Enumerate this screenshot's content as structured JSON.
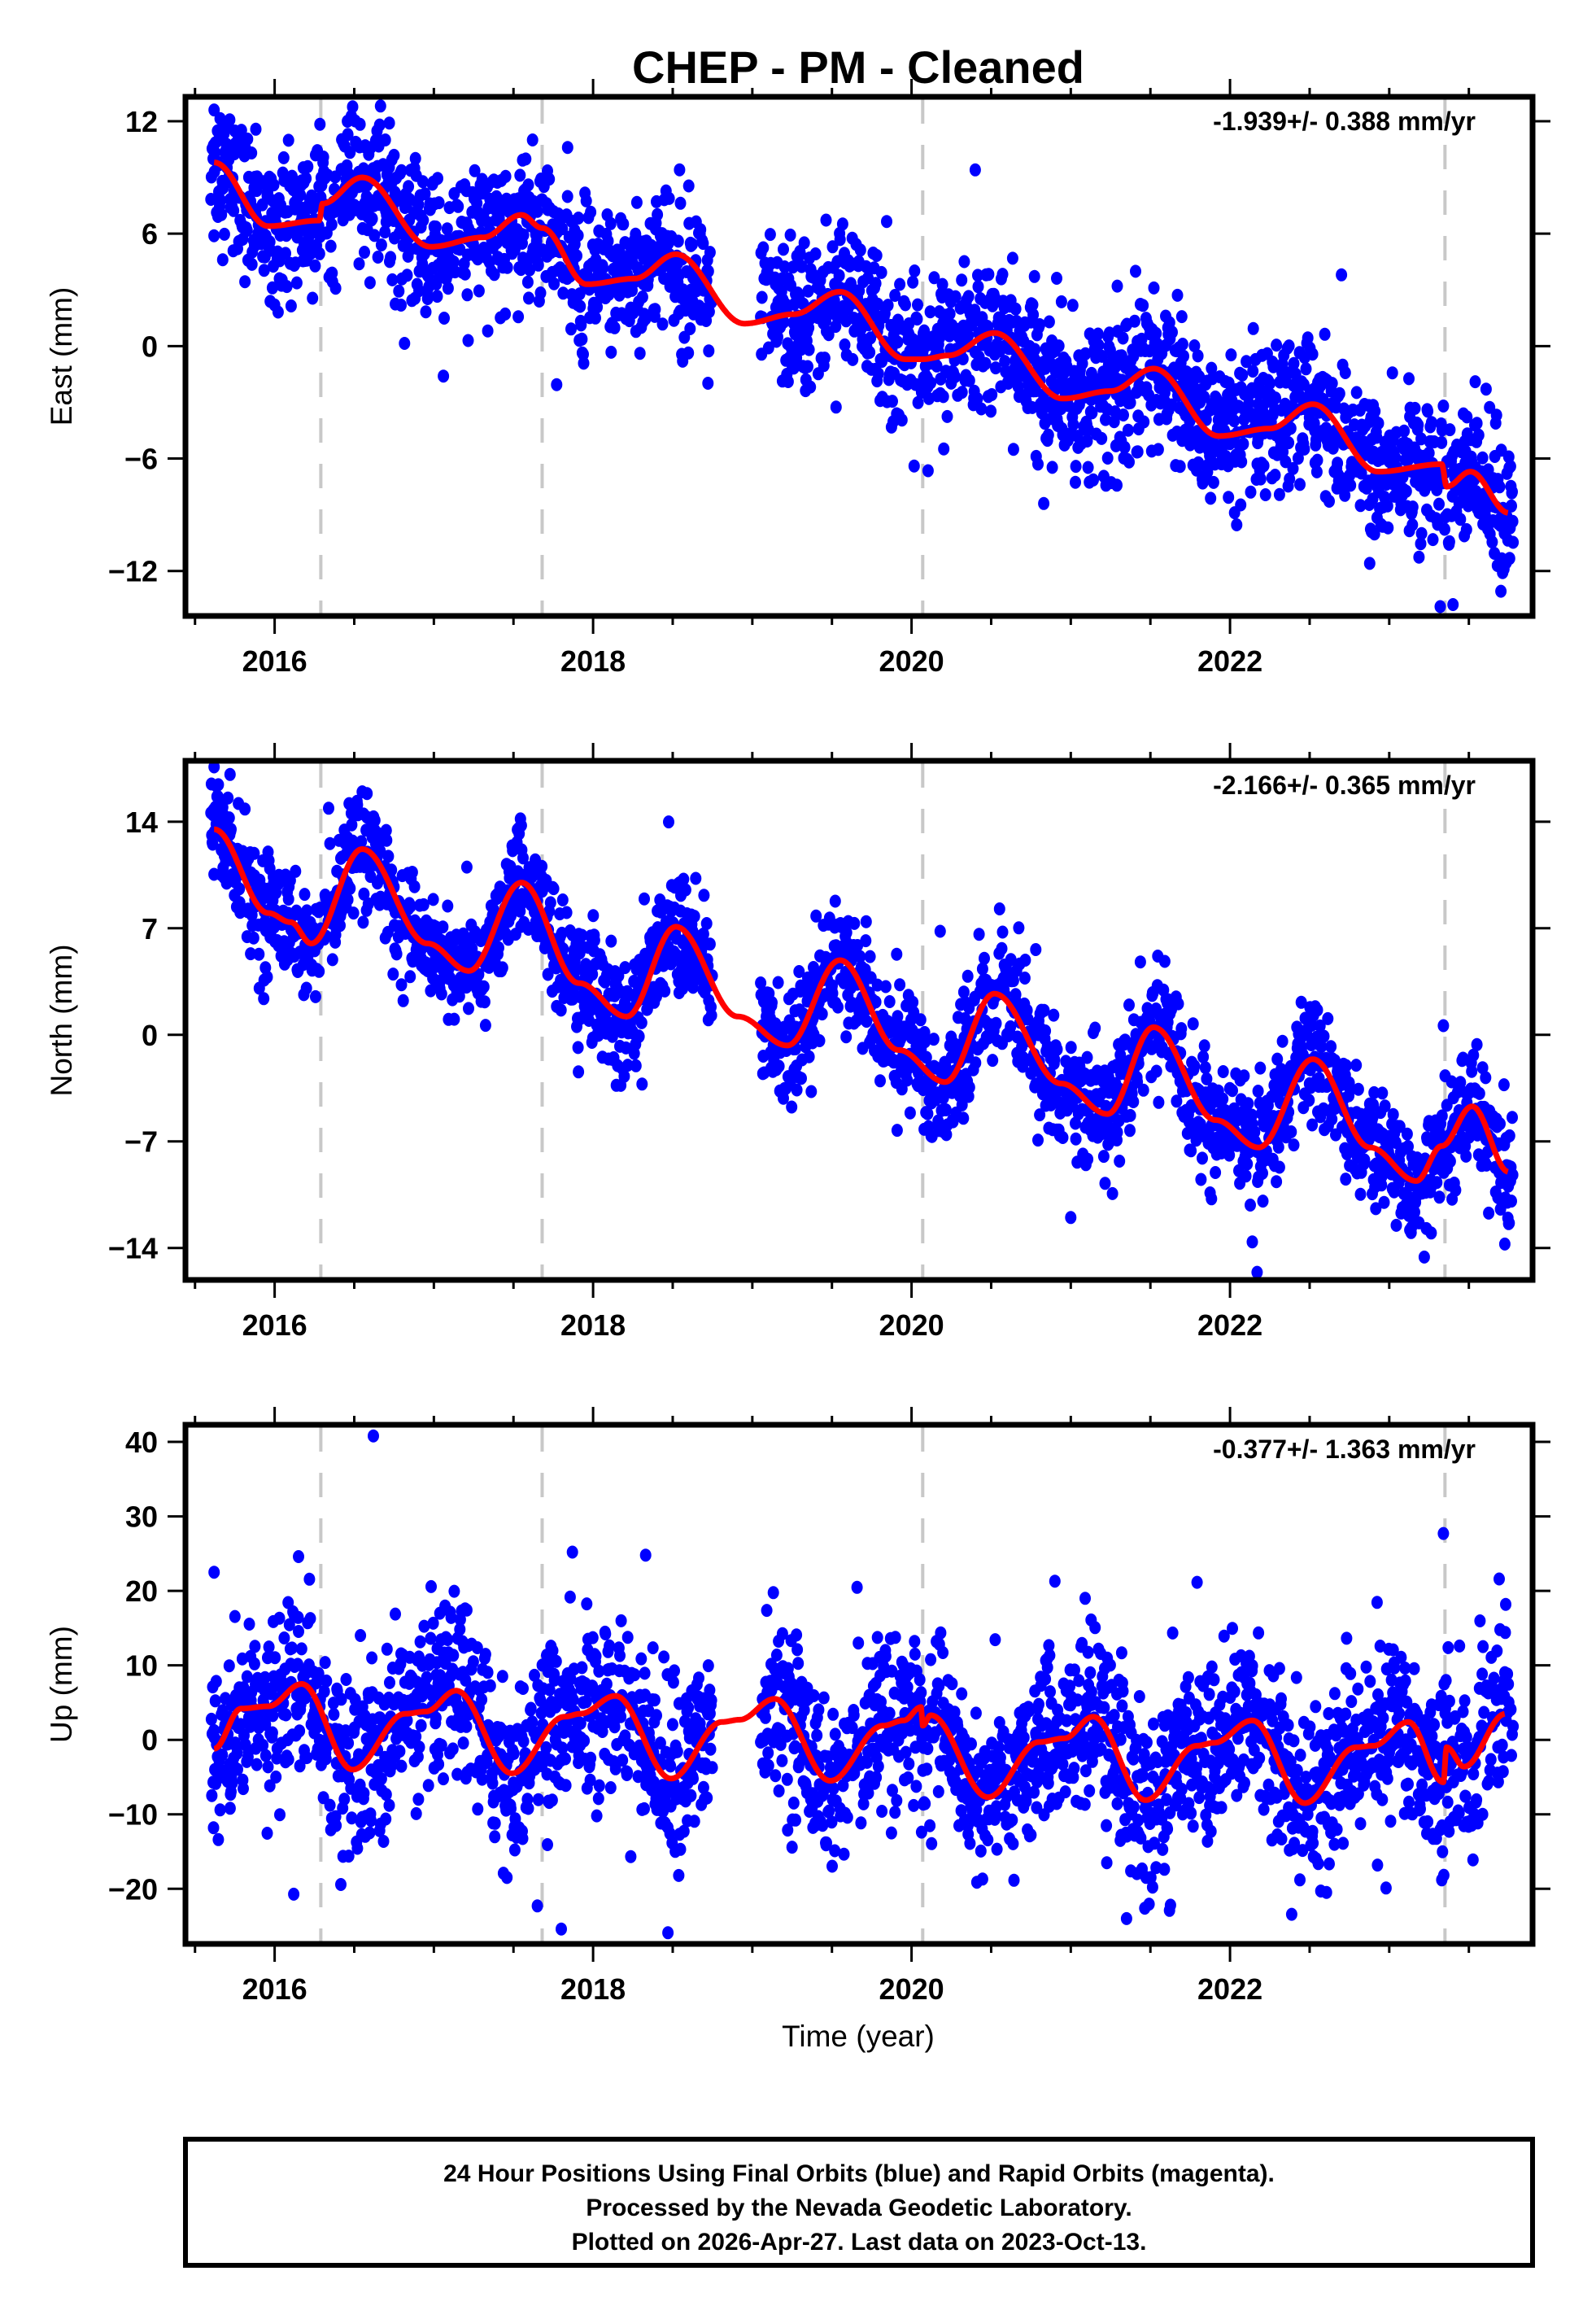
{
  "chart_data": {
    "type": "scatter",
    "title": "CHEP  - PM - Cleaned",
    "xlabel": "Time (year)",
    "xlim": [
      2015.44,
      2023.9
    ],
    "x_ticks": [
      2016,
      2018,
      2020,
      2022
    ],
    "x_tick_labels": [
      "2016",
      "2018",
      "2020",
      "2022"
    ],
    "x_minor_step": 0.5,
    "event_lines": [
      2016.29,
      2017.68,
      2020.07,
      2023.35
    ],
    "colors": {
      "points": "#0000ff",
      "model": "#ff0000",
      "event_line": "#c8c8c8",
      "frame": "#000000"
    },
    "data_span": [
      2015.6,
      2023.78
    ],
    "panels": [
      {
        "name": "east",
        "ylabel": "East (mm)",
        "ylim": [
          -14.4,
          13.3
        ],
        "y_ticks": [
          12,
          6,
          0,
          -6,
          -12
        ],
        "y_tick_labels": [
          "12",
          "6",
          "0",
          "−6",
          "−12"
        ],
        "rate_label": "-1.939+/- 0.388 mm/yr",
        "noise_sd": 1.9,
        "model": [
          [
            2015.62,
            9.8
          ],
          [
            2015.96,
            6.4
          ],
          [
            2016.28,
            6.7
          ],
          [
            2016.3,
            7.6
          ],
          [
            2016.55,
            9.0
          ],
          [
            2016.98,
            5.3
          ],
          [
            2017.31,
            5.8
          ],
          [
            2017.55,
            7.0
          ],
          [
            2017.68,
            6.3
          ],
          [
            2017.96,
            3.3
          ],
          [
            2018.26,
            3.6
          ],
          [
            2018.52,
            4.9
          ],
          [
            2018.95,
            1.2
          ],
          [
            2019.26,
            1.7
          ],
          [
            2019.55,
            2.9
          ],
          [
            2019.96,
            -0.7
          ],
          [
            2020.07,
            -0.7
          ],
          [
            2020.23,
            -0.5
          ],
          [
            2020.52,
            0.7
          ],
          [
            2020.95,
            -2.8
          ],
          [
            2021.25,
            -2.4
          ],
          [
            2021.52,
            -1.2
          ],
          [
            2021.93,
            -4.8
          ],
          [
            2022.25,
            -4.4
          ],
          [
            2022.52,
            -3.1
          ],
          [
            2022.93,
            -6.7
          ],
          [
            2023.33,
            -6.3
          ],
          [
            2023.36,
            -7.5
          ],
          [
            2023.51,
            -6.7
          ],
          [
            2023.75,
            -8.9
          ]
        ],
        "outliers": [
          [
            2015.62,
            12.6
          ],
          [
            2016.72,
            11.9
          ],
          [
            2017.62,
            11.0
          ],
          [
            2017.84,
            10.6
          ],
          [
            2020.4,
            9.4
          ],
          [
            2022.7,
            3.8
          ],
          [
            2017.06,
            -1.6
          ],
          [
            2020.83,
            -8.4
          ],
          [
            2023.32,
            -13.9
          ],
          [
            2023.72,
            -11.9
          ]
        ]
      },
      {
        "name": "north",
        "ylabel": "North (mm)",
        "ylim": [
          -16.1,
          18.0
        ],
        "y_ticks": [
          14,
          7,
          0,
          -7,
          -14
        ],
        "y_tick_labels": [
          "14",
          "7",
          "0",
          "−7",
          "−14"
        ],
        "rate_label": "-2.166+/- 0.365 mm/yr",
        "noise_sd": 1.9,
        "model": [
          [
            2015.62,
            13.5
          ],
          [
            2015.96,
            8.0
          ],
          [
            2016.1,
            7.4
          ],
          [
            2016.23,
            6.0
          ],
          [
            2016.55,
            12.2
          ],
          [
            2016.96,
            6.0
          ],
          [
            2017.22,
            4.2
          ],
          [
            2017.55,
            10.0
          ],
          [
            2017.91,
            3.4
          ],
          [
            2018.21,
            1.2
          ],
          [
            2018.52,
            7.1
          ],
          [
            2018.91,
            1.2
          ],
          [
            2019.22,
            -0.7
          ],
          [
            2019.55,
            4.9
          ],
          [
            2019.92,
            -1.0
          ],
          [
            2020.21,
            -3.1
          ],
          [
            2020.52,
            2.7
          ],
          [
            2020.94,
            -3.2
          ],
          [
            2021.23,
            -5.2
          ],
          [
            2021.52,
            0.5
          ],
          [
            2021.91,
            -5.6
          ],
          [
            2022.18,
            -7.4
          ],
          [
            2022.52,
            -1.6
          ],
          [
            2022.88,
            -7.4
          ],
          [
            2023.17,
            -9.6
          ],
          [
            2023.33,
            -7.3
          ],
          [
            2023.52,
            -4.7
          ],
          [
            2023.75,
            -9.0
          ]
        ],
        "outliers": [
          [
            2015.62,
            17.6
          ],
          [
            2015.72,
            17.1
          ],
          [
            2016.58,
            14.3
          ],
          [
            2020.18,
            6.8
          ],
          [
            2020.78,
            5.6
          ],
          [
            2021.0,
            -12.0
          ],
          [
            2022.14,
            -13.6
          ],
          [
            2022.17,
            -15.6
          ],
          [
            2023.22,
            -14.6
          ],
          [
            2023.34,
            0.6
          ],
          [
            2023.75,
            -12.4
          ]
        ]
      },
      {
        "name": "up",
        "ylabel": "Up (mm)",
        "ylim": [
          -27.4,
          42.3
        ],
        "y_ticks": [
          40,
          30,
          20,
          10,
          0,
          -10,
          -20
        ],
        "y_tick_labels": [
          "40",
          "30",
          "20",
          "10",
          "0",
          "−10",
          "−20"
        ],
        "rate_label": "-0.377+/- 1.363 mm/yr",
        "noise_sd": 5.8,
        "model": [
          [
            2015.62,
            -1.2
          ],
          [
            2015.79,
            4.2
          ],
          [
            2015.96,
            4.5
          ],
          [
            2016.17,
            7.5
          ],
          [
            2016.49,
            -4.0
          ],
          [
            2016.82,
            3.5
          ],
          [
            2016.95,
            3.8
          ],
          [
            2017.14,
            6.6
          ],
          [
            2017.49,
            -4.5
          ],
          [
            2017.82,
            3.1
          ],
          [
            2017.92,
            3.5
          ],
          [
            2018.14,
            5.9
          ],
          [
            2018.49,
            -5.2
          ],
          [
            2018.81,
            2.4
          ],
          [
            2018.92,
            2.7
          ],
          [
            2019.14,
            5.5
          ],
          [
            2019.49,
            -5.5
          ],
          [
            2019.82,
            1.9
          ],
          [
            2019.95,
            2.6
          ],
          [
            2020.06,
            4.4
          ],
          [
            2020.07,
            1.9
          ],
          [
            2020.12,
            3.3
          ],
          [
            2020.48,
            -7.7
          ],
          [
            2020.8,
            -0.3
          ],
          [
            2020.96,
            0.2
          ],
          [
            2021.14,
            3.1
          ],
          [
            2021.47,
            -8.1
          ],
          [
            2021.79,
            -0.8
          ],
          [
            2021.9,
            -0.4
          ],
          [
            2022.14,
            2.6
          ],
          [
            2022.47,
            -8.5
          ],
          [
            2022.79,
            -1.0
          ],
          [
            2022.9,
            -0.8
          ],
          [
            2023.12,
            2.4
          ],
          [
            2023.34,
            -5.7
          ],
          [
            2023.36,
            -1.0
          ],
          [
            2023.47,
            -3.6
          ],
          [
            2023.73,
            3.5
          ]
        ],
        "outliers": [
          [
            2016.62,
            40.8
          ],
          [
            2015.62,
            22.5
          ],
          [
            2016.15,
            24.6
          ],
          [
            2017.87,
            25.2
          ],
          [
            2018.33,
            24.8
          ],
          [
            2023.34,
            27.7
          ],
          [
            2017.65,
            -22.3
          ],
          [
            2017.8,
            -25.4
          ],
          [
            2018.47,
            -25.9
          ],
          [
            2023.33,
            -18.8
          ],
          [
            2021.35,
            -24.0
          ],
          [
            2021.62,
            -22.9
          ],
          [
            2022.57,
            -20.3
          ],
          [
            2022.98,
            -19.9
          ],
          [
            2021.09,
            19.0
          ],
          [
            2020.9,
            21.3
          ]
        ]
      }
    ]
  },
  "footer": {
    "line1": "24 Hour Positions Using Final Orbits (blue) and Rapid Orbits (magenta).",
    "line2": "Processed by the Nevada Geodetic Laboratory.",
    "line3": "Plotted on 2026-Apr-27. Last data on 2023-Oct-13."
  }
}
